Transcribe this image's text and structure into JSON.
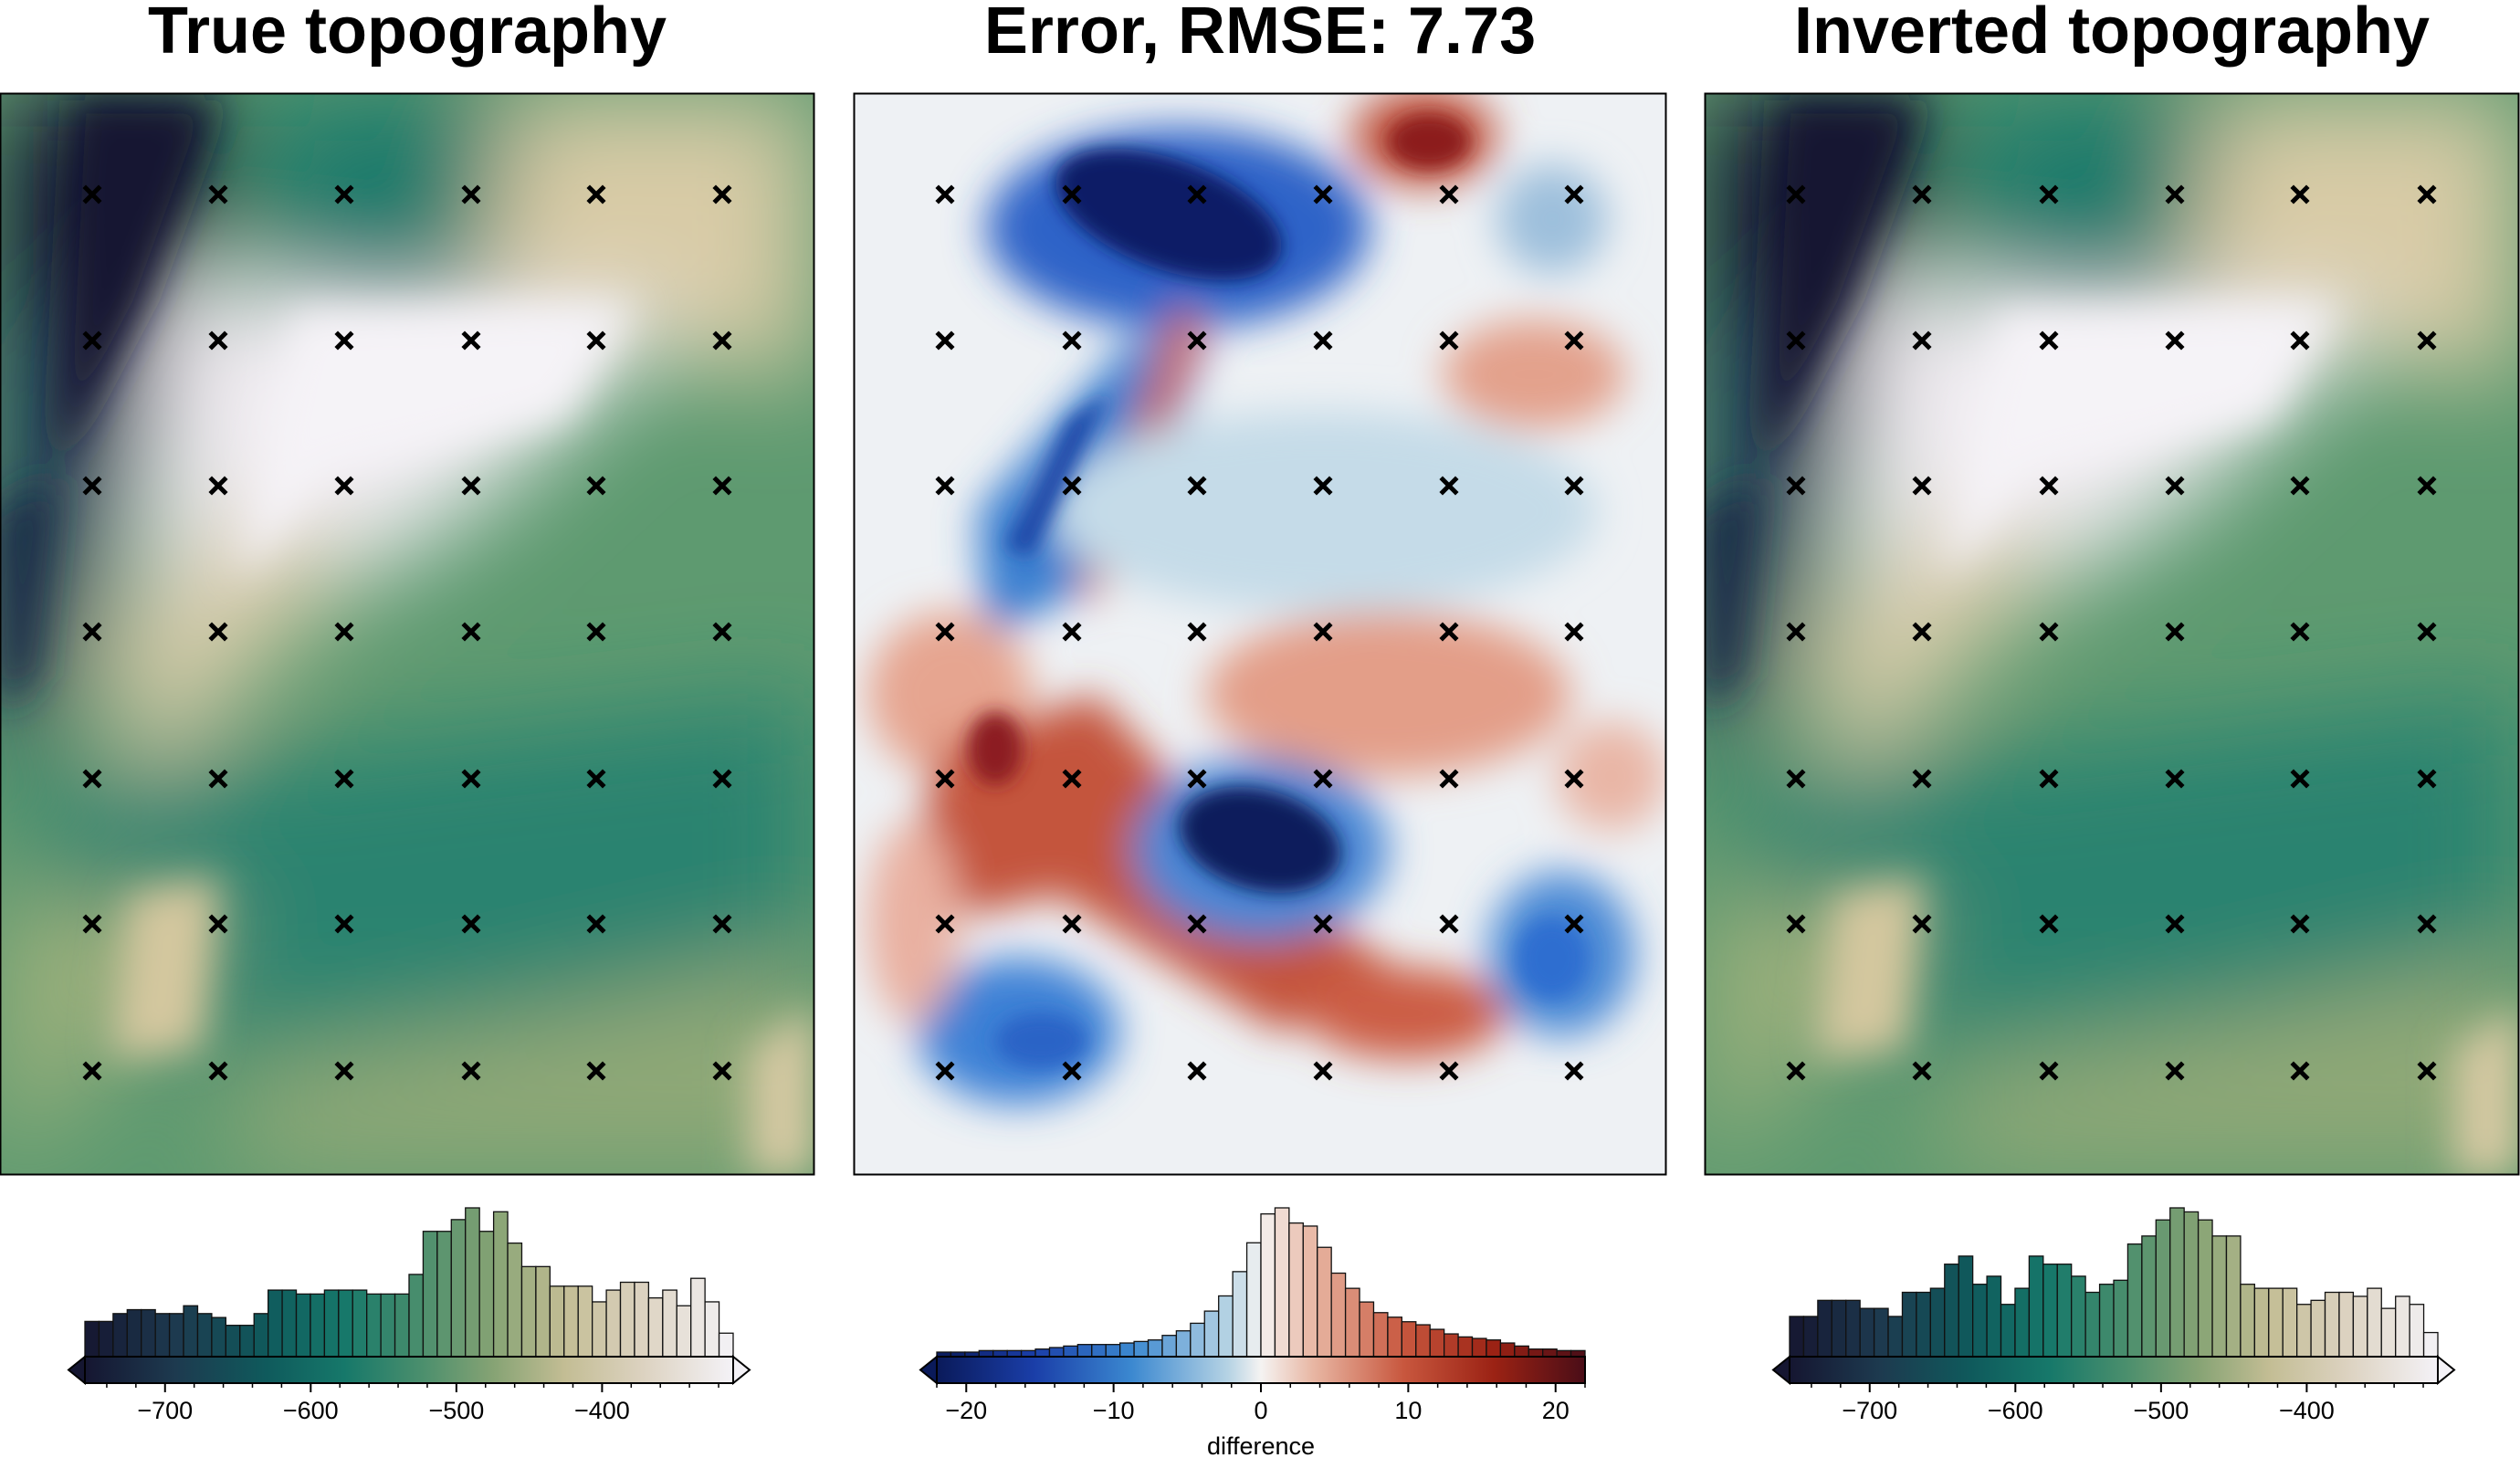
{
  "chart_data": [
    {
      "type": "heatmap",
      "title": "True topography",
      "colormap": "topography (dark navy - teal - green - tan - white)",
      "colorbar": {
        "type": "histogram",
        "range": [
          -755,
          -310
        ],
        "ticks": [
          -700,
          -600,
          -500,
          -400
        ],
        "tick_labels": [
          "−700",
          "−600",
          "−500",
          "−400"
        ],
        "label": "",
        "extend": "both",
        "histogram_counts": [
          9,
          9,
          11,
          12,
          12,
          11,
          11,
          13,
          11,
          10,
          8,
          8,
          11,
          17,
          17,
          16,
          16,
          17,
          17,
          17,
          16,
          16,
          16,
          21,
          32,
          32,
          35,
          38,
          32,
          37,
          29,
          23,
          23,
          18,
          18,
          18,
          14,
          17,
          19,
          19,
          15,
          17,
          13,
          20,
          14,
          6
        ]
      },
      "markers": {
        "symbol": "x",
        "columns": 6,
        "rows": 7
      }
    },
    {
      "type": "heatmap",
      "title": "Error, RMSE: 7.73",
      "colormap": "diverging (blue - white - red)",
      "colorbar": {
        "type": "histogram",
        "range": [
          -22,
          22
        ],
        "ticks": [
          -20,
          -10,
          0,
          10,
          20
        ],
        "tick_labels": [
          "−20",
          "−10",
          "0",
          "10",
          "20"
        ],
        "label": "difference",
        "extend": "min",
        "histogram_counts": [
          3,
          3,
          3,
          4,
          4,
          4,
          4,
          5,
          6,
          7,
          8,
          8,
          8,
          9,
          10,
          11,
          14,
          17,
          22,
          30,
          40,
          56,
          75,
          94,
          98,
          88,
          86,
          72,
          55,
          45,
          36,
          29,
          26,
          23,
          21,
          18,
          15,
          13,
          12,
          11,
          9,
          7,
          5,
          5,
          4,
          4
        ]
      },
      "markers": {
        "symbol": "x",
        "columns": 6,
        "rows": 7
      }
    },
    {
      "type": "heatmap",
      "title": "Inverted topography",
      "colormap": "topography (dark navy - teal - green - tan - white)",
      "colorbar": {
        "type": "histogram",
        "range": [
          -755,
          -310
        ],
        "ticks": [
          -700,
          -600,
          -500,
          -400
        ],
        "tick_labels": [
          "−700",
          "−600",
          "−500",
          "−400"
        ],
        "label": "",
        "extend": "both",
        "histogram_counts": [
          10,
          10,
          14,
          14,
          14,
          12,
          12,
          10,
          16,
          16,
          17,
          23,
          25,
          18,
          20,
          13,
          17,
          25,
          23,
          23,
          20,
          16,
          18,
          19,
          28,
          30,
          34,
          37,
          36,
          34,
          30,
          30,
          18,
          17,
          17,
          17,
          13,
          14,
          16,
          16,
          15,
          17,
          12,
          15,
          13,
          6
        ]
      },
      "markers": {
        "symbol": "x",
        "columns": 6,
        "rows": 7
      }
    }
  ]
}
